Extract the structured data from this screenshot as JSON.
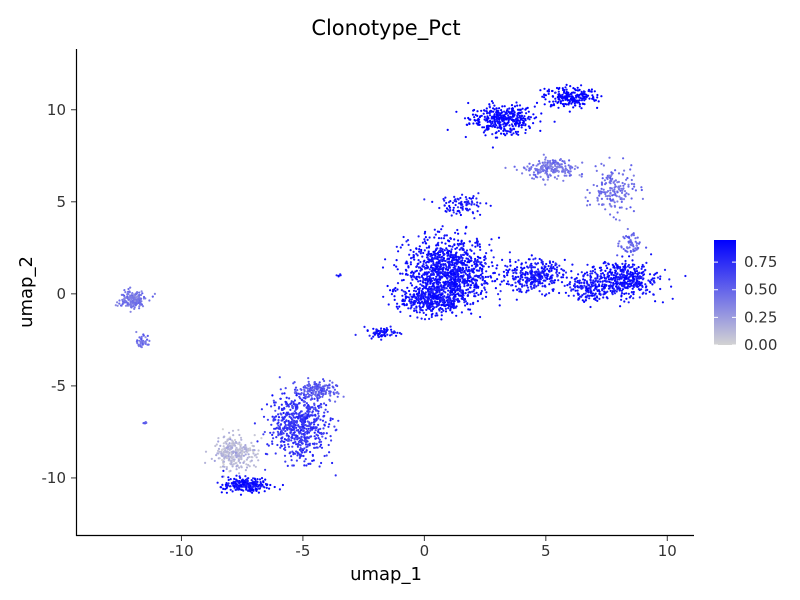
{
  "chart_data": {
    "type": "scatter",
    "title": "Clonotype_Pct",
    "xlabel": "umap_1",
    "ylabel": "umap_2",
    "xlim": [
      -14.3,
      11.1
    ],
    "ylim": [
      -13.1,
      13.3
    ],
    "x_ticks": [
      -10,
      -5,
      0,
      5,
      10
    ],
    "y_ticks": [
      -10,
      -5,
      0,
      5,
      10
    ],
    "x_tick_labels": [
      "-10",
      "-5",
      "0",
      "5",
      "10"
    ],
    "y_tick_labels": [
      "-10",
      "-5",
      "0",
      "5",
      "10"
    ],
    "grid": false,
    "legend": {
      "position": "right",
      "type": "colorbar",
      "range": [
        0,
        0.95
      ],
      "ticks": [
        0.0,
        0.25,
        0.5,
        0.75
      ],
      "tick_labels": [
        "0.00",
        "0.25",
        "0.50",
        "0.75"
      ],
      "low_color": "#d3d3d3",
      "high_color": "#0000ff"
    },
    "clusters": [
      {
        "x": 3.2,
        "y": 9.5,
        "spread": [
          1.2,
          0.7
        ],
        "n": 380,
        "value": 0.93
      },
      {
        "x": 6.0,
        "y": 10.7,
        "spread": [
          1.0,
          0.5
        ],
        "n": 220,
        "value": 0.95
      },
      {
        "x": 5.2,
        "y": 6.8,
        "spread": [
          0.9,
          0.5
        ],
        "n": 200,
        "value": 0.42
      },
      {
        "x": 7.8,
        "y": 5.6,
        "spread": [
          0.8,
          1.1
        ],
        "n": 170,
        "value": 0.45
      },
      {
        "x": 8.5,
        "y": 2.6,
        "spread": [
          0.4,
          0.6
        ],
        "n": 60,
        "value": 0.48
      },
      {
        "x": 1.0,
        "y": 1.2,
        "spread": [
          1.6,
          1.6
        ],
        "n": 1100,
        "value": 0.88
      },
      {
        "x": 0.3,
        "y": -0.3,
        "spread": [
          1.2,
          0.7
        ],
        "n": 380,
        "value": 0.88
      },
      {
        "x": 4.5,
        "y": 1.0,
        "spread": [
          1.2,
          0.8
        ],
        "n": 320,
        "value": 0.85
      },
      {
        "x": 8.2,
        "y": 0.8,
        "spread": [
          1.3,
          0.9
        ],
        "n": 430,
        "value": 0.88
      },
      {
        "x": 6.8,
        "y": 0.3,
        "spread": [
          0.8,
          0.6
        ],
        "n": 150,
        "value": 0.86
      },
      {
        "x": 1.5,
        "y": 4.8,
        "spread": [
          0.9,
          0.5
        ],
        "n": 90,
        "value": 0.85
      },
      {
        "x": -1.8,
        "y": -2.1,
        "spread": [
          0.6,
          0.25
        ],
        "n": 70,
        "value": 0.88
      },
      {
        "x": -12.0,
        "y": -0.3,
        "spread": [
          0.5,
          0.45
        ],
        "n": 190,
        "value": 0.42
      },
      {
        "x": -11.6,
        "y": -2.6,
        "spread": [
          0.2,
          0.3
        ],
        "n": 40,
        "value": 0.45
      },
      {
        "x": -5.2,
        "y": -7.2,
        "spread": [
          1.1,
          1.6
        ],
        "n": 650,
        "value": 0.72
      },
      {
        "x": -4.4,
        "y": -5.3,
        "spread": [
          0.7,
          0.5
        ],
        "n": 150,
        "value": 0.55
      },
      {
        "x": -7.8,
        "y": -8.6,
        "spread": [
          0.8,
          0.8
        ],
        "n": 280,
        "value": 0.12
      },
      {
        "x": -7.4,
        "y": -10.4,
        "spread": [
          0.8,
          0.4
        ],
        "n": 220,
        "value": 0.9
      },
      {
        "x": -3.5,
        "y": 1.0,
        "spread": [
          0.1,
          0.05
        ],
        "n": 6,
        "value": 0.85
      },
      {
        "x": -11.5,
        "y": -7.0,
        "spread": [
          0.1,
          0.05
        ],
        "n": 6,
        "value": 0.5
      }
    ]
  }
}
